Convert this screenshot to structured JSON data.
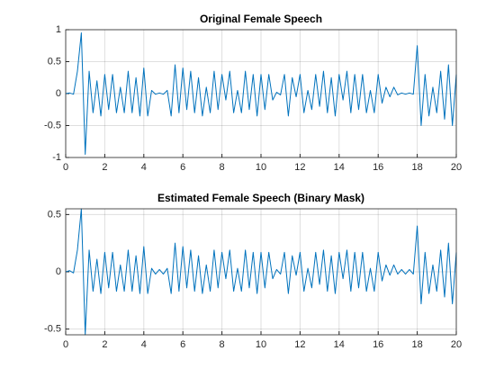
{
  "chart_data": [
    {
      "type": "line",
      "title": "Original Female Speech",
      "x": [
        0,
        0.2,
        0.4,
        0.6,
        0.8,
        1,
        1.2,
        1.4,
        1.6,
        1.8,
        2,
        2.2,
        2.4,
        2.6,
        2.8,
        3,
        3.2,
        3.4,
        3.6,
        3.8,
        4,
        4.2,
        4.4,
        4.6,
        4.8,
        5,
        5.2,
        5.4,
        5.6,
        5.8,
        6,
        6.2,
        6.4,
        6.6,
        6.8,
        7,
        7.2,
        7.4,
        7.6,
        7.8,
        8,
        8.2,
        8.4,
        8.6,
        8.8,
        9,
        9.2,
        9.4,
        9.6,
        9.8,
        10,
        10.2,
        10.4,
        10.6,
        10.8,
        11,
        11.2,
        11.4,
        11.6,
        11.8,
        12,
        12.2,
        12.4,
        12.6,
        12.8,
        13,
        13.2,
        13.4,
        13.6,
        13.8,
        14,
        14.2,
        14.4,
        14.6,
        14.8,
        15,
        15.2,
        15.4,
        15.6,
        15.8,
        16,
        16.2,
        16.4,
        16.6,
        16.8,
        17,
        17.2,
        17.4,
        17.6,
        17.8,
        18,
        18.2,
        18.4,
        18.6,
        18.8,
        19,
        19.2,
        19.4,
        19.6,
        19.8,
        20
      ],
      "series": [
        {
          "color": "#0072bd",
          "values": [
            0,
            0.01,
            -0.01,
            0.35,
            0.95,
            -0.95,
            0.35,
            -0.3,
            0.2,
            -0.35,
            0.3,
            -0.25,
            0.3,
            -0.3,
            0.1,
            -0.3,
            0.35,
            -0.3,
            0.25,
            -0.35,
            0.4,
            -0.35,
            0.05,
            -0.01,
            0.01,
            -0.01,
            0.05,
            -0.35,
            0.45,
            -0.3,
            0.4,
            -0.25,
            0.35,
            -0.3,
            0.25,
            -0.35,
            0.1,
            -0.3,
            0.35,
            -0.25,
            0.3,
            -0.1,
            0.35,
            -0.3,
            0.05,
            -0.3,
            0.35,
            -0.25,
            0.3,
            -0.35,
            0.3,
            -0.25,
            0.3,
            -0.1,
            0.02,
            -0.02,
            0.3,
            -0.35,
            0.25,
            -0.05,
            0.3,
            -0.3,
            0.05,
            -0.25,
            0.3,
            -0.2,
            0.35,
            -0.3,
            0.25,
            -0.35,
            0.3,
            -0.1,
            0.35,
            -0.3,
            0.3,
            -0.25,
            0.3,
            -0.3,
            0.05,
            -0.3,
            0.3,
            -0.15,
            0.1,
            -0.05,
            0.1,
            -0.02,
            0.01,
            -0.01,
            0.01,
            -0.01,
            0.75,
            -0.5,
            0.3,
            -0.35,
            0.1,
            -0.3,
            0.35,
            -0.4,
            0.45,
            -0.5,
            0.3
          ]
        }
      ],
      "xlim": [
        0,
        20
      ],
      "xticks": [
        0,
        2,
        4,
        6,
        8,
        10,
        12,
        14,
        16,
        18,
        20
      ],
      "ylim": [
        -1,
        1
      ],
      "yticks": [
        -1,
        -0.5,
        0,
        0.5,
        1
      ],
      "grid": true
    },
    {
      "type": "line",
      "title": "Estimated Female Speech (Binary Mask)",
      "x": [
        0,
        0.2,
        0.4,
        0.6,
        0.8,
        1,
        1.2,
        1.4,
        1.6,
        1.8,
        2,
        2.2,
        2.4,
        2.6,
        2.8,
        3,
        3.2,
        3.4,
        3.6,
        3.8,
        4,
        4.2,
        4.4,
        4.6,
        4.8,
        5,
        5.2,
        5.4,
        5.6,
        5.8,
        6,
        6.2,
        6.4,
        6.6,
        6.8,
        7,
        7.2,
        7.4,
        7.6,
        7.8,
        8,
        8.2,
        8.4,
        8.6,
        8.8,
        9,
        9.2,
        9.4,
        9.6,
        9.8,
        10,
        10.2,
        10.4,
        10.6,
        10.8,
        11,
        11.2,
        11.4,
        11.6,
        11.8,
        12,
        12.2,
        12.4,
        12.6,
        12.8,
        13,
        13.2,
        13.4,
        13.6,
        13.8,
        14,
        14.2,
        14.4,
        14.6,
        14.8,
        15,
        15.2,
        15.4,
        15.6,
        15.8,
        16,
        16.2,
        16.4,
        16.6,
        16.8,
        17,
        17.2,
        17.4,
        17.6,
        17.8,
        18,
        18.2,
        18.4,
        18.6,
        18.8,
        19,
        19.2,
        19.4,
        19.6,
        19.8,
        20
      ],
      "series": [
        {
          "color": "#0072bd",
          "values": [
            0,
            0.01,
            -0.01,
            0.19,
            0.55,
            -0.55,
            0.19,
            -0.17,
            0.11,
            -0.19,
            0.17,
            -0.14,
            0.17,
            -0.17,
            0.06,
            -0.17,
            0.19,
            -0.17,
            0.14,
            -0.19,
            0.22,
            -0.19,
            0.03,
            -0.02,
            0.02,
            -0.02,
            0.03,
            -0.19,
            0.25,
            -0.17,
            0.22,
            -0.14,
            0.19,
            -0.17,
            0.14,
            -0.19,
            0.06,
            -0.17,
            0.19,
            -0.14,
            0.17,
            -0.06,
            0.19,
            -0.17,
            0.03,
            -0.17,
            0.19,
            -0.14,
            0.17,
            -0.19,
            0.17,
            -0.14,
            0.17,
            -0.06,
            0.02,
            -0.02,
            0.17,
            -0.19,
            0.14,
            -0.03,
            0.17,
            -0.17,
            0.03,
            -0.14,
            0.17,
            -0.11,
            0.19,
            -0.17,
            0.14,
            -0.19,
            0.17,
            -0.06,
            0.19,
            -0.17,
            0.17,
            -0.14,
            0.17,
            -0.17,
            0.03,
            -0.17,
            0.17,
            -0.08,
            0.06,
            -0.03,
            0.06,
            -0.02,
            0.02,
            -0.02,
            0.02,
            -0.02,
            0.4,
            -0.28,
            0.17,
            -0.19,
            0.06,
            -0.17,
            0.19,
            -0.22,
            0.25,
            -0.28,
            0.17
          ]
        }
      ],
      "xlim": [
        0,
        20
      ],
      "xticks": [
        0,
        2,
        4,
        6,
        8,
        10,
        12,
        14,
        16,
        18,
        20
      ],
      "ylim": [
        -0.55,
        0.55
      ],
      "yticks": [
        -0.5,
        0,
        0.5
      ],
      "grid": true
    }
  ]
}
